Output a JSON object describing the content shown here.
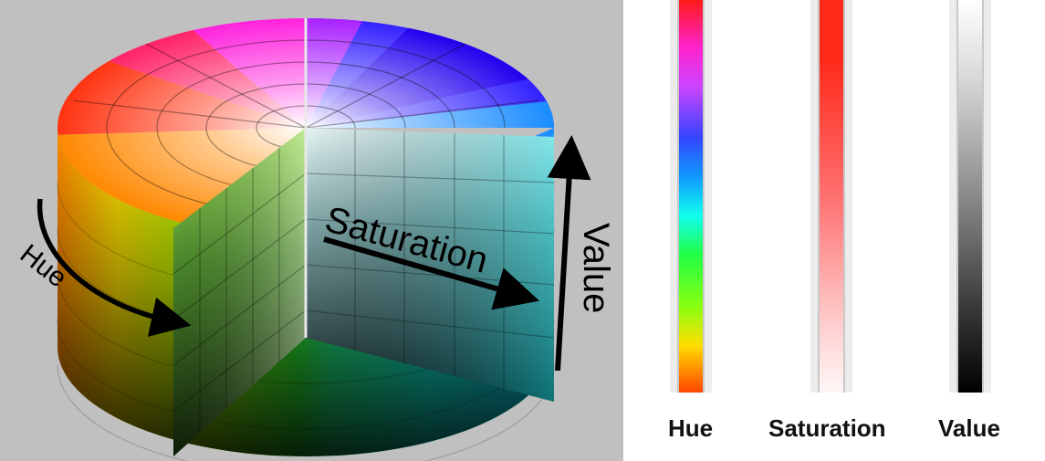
{
  "diagram": {
    "labels": {
      "hue": "Hue",
      "saturation": "Saturation",
      "value": "Value"
    }
  },
  "strips": [
    {
      "label": "Hue"
    },
    {
      "label": "Saturation"
    },
    {
      "label": "Value"
    }
  ],
  "colors": {
    "panel_bg": "#c0c0c0",
    "saturation_full": "#ff2a1a",
    "value_top": "#ffffff",
    "value_bottom": "#000000"
  }
}
